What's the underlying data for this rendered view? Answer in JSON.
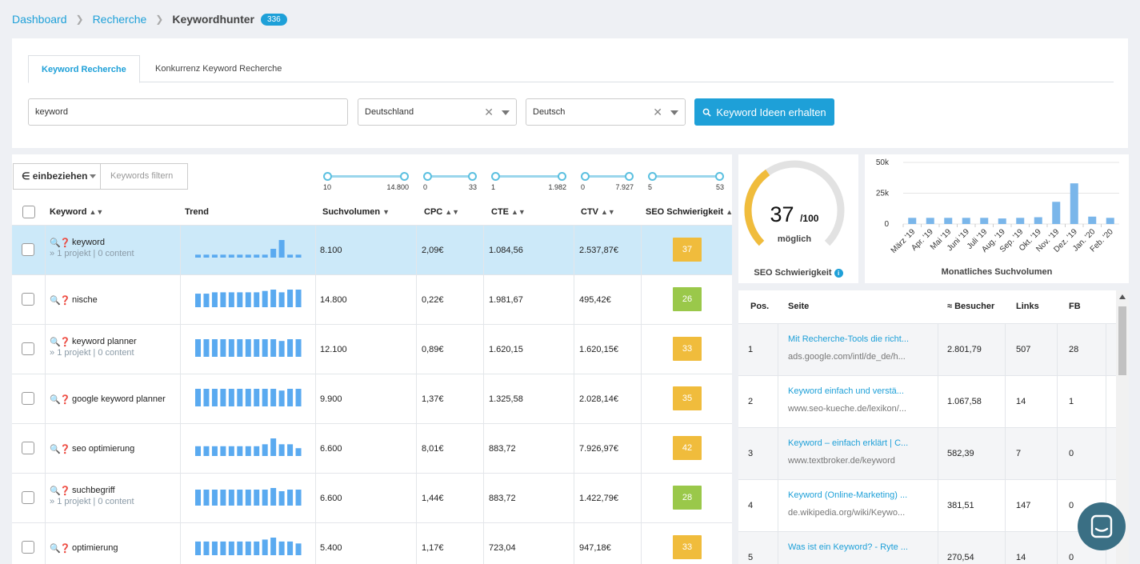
{
  "breadcrumb": {
    "items": [
      "Dashboard",
      "Recherche"
    ],
    "current": "Keywordhunter",
    "count": "336"
  },
  "tabs": [
    {
      "label": "Keyword Recherche",
      "active": true
    },
    {
      "label": "Konkurrenz Keyword Recherche",
      "active": false
    }
  ],
  "search": {
    "keyword": "keyword",
    "country": "Deutschland",
    "language": "Deutsch",
    "button_label": "Keyword Ideen erhalten",
    "button_icon": "search-icon"
  },
  "filter": {
    "include_label": "∈ einbeziehen",
    "filter_placeholder": "Keywords filtern",
    "ranges": [
      {
        "min": "10",
        "max": "14.800"
      },
      {
        "min": "0",
        "max": "33"
      },
      {
        "min": "1",
        "max": "1.982"
      },
      {
        "min": "0",
        "max": "7.927"
      },
      {
        "min": "5",
        "max": "53"
      }
    ]
  },
  "table": {
    "columns": {
      "keyword": "Keyword",
      "trend": "Trend",
      "volume": "Suchvolumen",
      "cpc": "CPC",
      "cte": "CTE",
      "ctv": "CTV",
      "seo": "SEO Schwierigkeit"
    },
    "rows": [
      {
        "keyword": "keyword",
        "sub": "1 projekt | 0 content",
        "volume": "8.100",
        "cpc": "2,09€",
        "cte": "1.084,56",
        "ctv": "2.537,87€",
        "seo": "37",
        "seo_color": "#f0bc3c",
        "selected": true,
        "trend": [
          2,
          2,
          2,
          2,
          2,
          2,
          2,
          2,
          2,
          6,
          12,
          2,
          2
        ]
      },
      {
        "keyword": "nische",
        "sub": "",
        "volume": "14.800",
        "cpc": "0,22€",
        "cte": "1.981,67",
        "ctv": "495,42€",
        "seo": "26",
        "seo_color": "#9ac84a",
        "selected": false,
        "trend": [
          10,
          10,
          11,
          11,
          11,
          11,
          11,
          11,
          12,
          13,
          11,
          13,
          13
        ]
      },
      {
        "keyword": "keyword planner",
        "sub": "1 projekt | 0 content",
        "volume": "12.100",
        "cpc": "0,89€",
        "cte": "1.620,15",
        "ctv": "1.620,15€",
        "seo": "33",
        "seo_color": "#f0bc3c",
        "selected": false,
        "trend": [
          10,
          10,
          10,
          10,
          10,
          10,
          10,
          10,
          10,
          10,
          9,
          10,
          10
        ]
      },
      {
        "keyword": "google keyword planner",
        "sub": "",
        "volume": "9.900",
        "cpc": "1,37€",
        "cte": "1.325,58",
        "ctv": "2.028,14€",
        "seo": "35",
        "seo_color": "#f0bc3c",
        "selected": false,
        "trend": [
          10,
          10,
          10,
          10,
          10,
          10,
          10,
          10,
          10,
          10,
          9,
          10,
          10
        ]
      },
      {
        "keyword": "seo optimierung",
        "sub": "",
        "volume": "6.600",
        "cpc": "8,01€",
        "cte": "883,72",
        "ctv": "7.926,97€",
        "seo": "42",
        "seo_color": "#f0bc3c",
        "selected": false,
        "trend": [
          5,
          5,
          5,
          5,
          5,
          5,
          5,
          5,
          6,
          9,
          6,
          6,
          4
        ]
      },
      {
        "keyword": "suchbegriff",
        "sub": "1 projekt | 0 content",
        "volume": "6.600",
        "cpc": "1,44€",
        "cte": "883,72",
        "ctv": "1.422,79€",
        "seo": "28",
        "seo_color": "#9ac84a",
        "selected": false,
        "trend": [
          10,
          10,
          10,
          10,
          10,
          10,
          10,
          10,
          10,
          11,
          9,
          10,
          10
        ]
      },
      {
        "keyword": "optimierung",
        "sub": "",
        "volume": "5.400",
        "cpc": "1,17€",
        "cte": "723,04",
        "ctv": "947,18€",
        "seo": "33",
        "seo_color": "#f0bc3c",
        "selected": false,
        "trend": [
          7,
          7,
          7,
          7,
          7,
          7,
          7,
          7,
          8,
          9,
          7,
          7,
          6
        ]
      }
    ]
  },
  "gauge": {
    "value": 37,
    "value_text": "37",
    "max_text": "/100",
    "sub_label": "möglich",
    "label": "SEO Schwierigkeit",
    "color": "#f0bc3c"
  },
  "chart_data": {
    "type": "bar",
    "title": "Monatliches Suchvolumen",
    "categories": [
      "März '19",
      "Apr. '19",
      "Mai '19",
      "Juni '19",
      "Juli '19",
      "Aug. '19",
      "Sep. '19",
      "Okt. '19",
      "Nov. '19",
      "Dez. '19",
      "Jan. '20",
      "Feb. '20"
    ],
    "values": [
      5000,
      5000,
      5000,
      5000,
      5000,
      4500,
      5000,
      5500,
      18000,
      33000,
      6000,
      5000
    ],
    "yticks": [
      "0",
      "25k",
      "50k"
    ],
    "ylim": [
      0,
      50000
    ],
    "color": "#7ab6ea"
  },
  "serp": {
    "columns": {
      "pos": "Pos.",
      "page": "Seite",
      "visitors": "≈ Besucher",
      "links": "Links",
      "fb": "FB"
    },
    "rows": [
      {
        "pos": "1",
        "title": "Mit Recherche-Tools die richt...",
        "url": "ads.google.com/intl/de_de/h...",
        "visitors": "2.801,79",
        "links": "507",
        "fb": "28"
      },
      {
        "pos": "2",
        "title": "Keyword einfach und verstä...",
        "url": "www.seo-kueche.de/lexikon/...",
        "visitors": "1.067,58",
        "links": "14",
        "fb": "1"
      },
      {
        "pos": "3",
        "title": "Keyword – einfach erklärt | C...",
        "url": "www.textbroker.de/keyword",
        "visitors": "582,39",
        "links": "7",
        "fb": "0"
      },
      {
        "pos": "4",
        "title": "Keyword (Online-Marketing) ...",
        "url": "de.wikipedia.org/wiki/Keywo...",
        "visitors": "381,51",
        "links": "147",
        "fb": "0"
      },
      {
        "pos": "5",
        "title": "Was ist ein Keyword? - Ryte ...",
        "url": "",
        "visitors": "270,54",
        "links": "14",
        "fb": "0"
      }
    ]
  },
  "chat": {
    "icon": "chat-icon"
  }
}
